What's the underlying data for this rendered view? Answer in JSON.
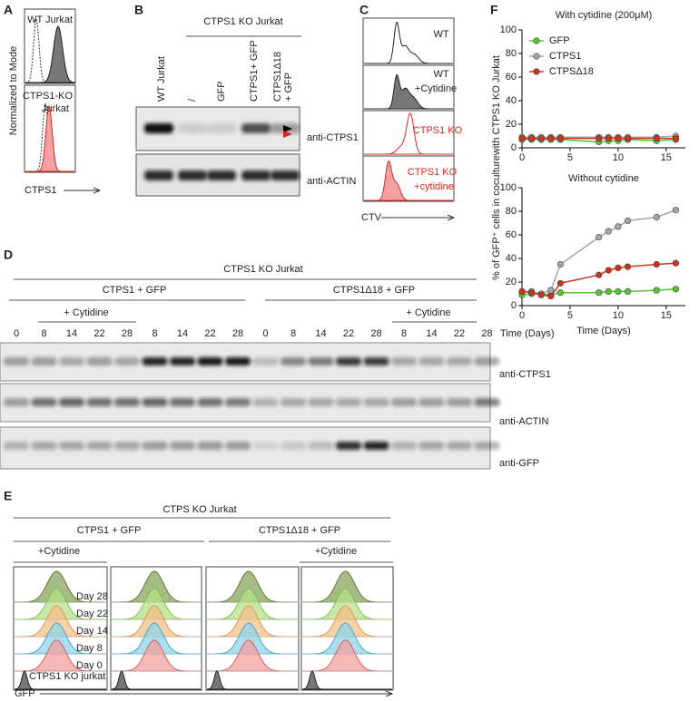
{
  "panel_labels": [
    "A",
    "B",
    "C",
    "D",
    "E",
    "F"
  ],
  "panel_a": {
    "y_label": "Normalized to Mode",
    "x_label": "CTPS1",
    "top_label": "WT Jurkat",
    "bottom_label": [
      "CTPS1-KO",
      "Jurkat"
    ]
  },
  "panel_b": {
    "header": "CTPS1 KO Jurkat",
    "lanes": [
      [
        "WT Jurkat"
      ],
      [
        "/"
      ],
      [
        "GFP"
      ],
      [
        "CTPS1+ GFP"
      ],
      [
        "CTPS1Δ18",
        "+ GFP"
      ]
    ],
    "blots": [
      "anti-CTPS1",
      "anti-ACTIN"
    ]
  },
  "panel_c": {
    "rows": [
      [
        "WT"
      ],
      [
        "WT",
        "+Cytidine"
      ],
      [
        "CTPS1 KO"
      ],
      [
        "CTPS1 KO",
        "+cytidine"
      ]
    ],
    "x_label": "CTV"
  },
  "panel_d": {
    "header": "CTPS1 KO Jurkat",
    "groups": [
      "CTPS1 + GFP",
      "CTPS1Δ18 + GFP"
    ],
    "cytidine": "+ Cytidine",
    "lanes": [
      "0",
      "8",
      "14",
      "22",
      "28",
      "8",
      "14",
      "22",
      "28",
      "0",
      "8",
      "14",
      "22",
      "28",
      "8",
      "14",
      "22",
      "28"
    ],
    "time_label": "Time (Days)",
    "blots": [
      "anti-CTPS1",
      "anti-ACTIN",
      "anti-GFP"
    ]
  },
  "panel_e": {
    "header": "CTPS KO Jurkat",
    "groups": [
      "CTPS1 + GFP",
      "CTPS1Δ18 + GFP"
    ],
    "cytidine": "+Cytidine",
    "days": [
      "Day  28",
      "Day  22",
      "Day 14",
      "Day 8",
      "Day 0"
    ],
    "control": "CTPS1 KO jurkat",
    "x_label": "GFP"
  },
  "chart_data": [
    {
      "type": "line",
      "title": "With cytidine (200μM)",
      "ylabel": "% of GFP⁺ cells in coculturewith CTPS1 KO Jurkat",
      "x": [
        0,
        1,
        2,
        3,
        4,
        8,
        9,
        10,
        11,
        14,
        16
      ],
      "series": [
        {
          "name": "GFP",
          "color": "#55c533",
          "values": [
            7,
            7,
            7,
            7,
            7,
            5,
            6,
            6,
            7,
            6,
            7
          ]
        },
        {
          "name": "CTPS1",
          "color": "#a6a6a6",
          "values": [
            9,
            9,
            9,
            9,
            9,
            9,
            9,
            9,
            9,
            9,
            10
          ]
        },
        {
          "name": "CTPSΔ18",
          "color": "#d1321e",
          "values": [
            8,
            8,
            8,
            8,
            8,
            8,
            8,
            8,
            8,
            8,
            8
          ]
        }
      ],
      "xlim": [
        0,
        17
      ],
      "ylim": [
        0,
        100
      ],
      "xticks": [
        0,
        5,
        10,
        15
      ],
      "yticks": [
        0,
        20,
        40,
        60,
        80,
        100
      ],
      "legend": "upper left"
    },
    {
      "type": "line",
      "title": "Without cytidine",
      "xlabel": "Time (Days)",
      "x": [
        0,
        1,
        2,
        3,
        4,
        8,
        9,
        10,
        11,
        14,
        16
      ],
      "series": [
        {
          "color": "#55c533",
          "values": [
            9,
            10,
            10,
            9,
            11,
            11,
            12,
            12,
            12,
            13,
            14
          ]
        },
        {
          "color": "#a6a6a6",
          "values": [
            12,
            12,
            10,
            13,
            35,
            58,
            63,
            67,
            72,
            75,
            81
          ]
        },
        {
          "color": "#d1321e",
          "values": [
            12,
            11,
            9,
            8,
            19,
            26,
            30,
            32,
            33,
            35,
            36
          ]
        }
      ],
      "xlim": [
        0,
        17
      ],
      "ylim": [
        0,
        100
      ],
      "xticks": [
        0,
        5,
        10,
        15
      ],
      "yticks": [
        0,
        20,
        40,
        60,
        80,
        100
      ]
    }
  ]
}
